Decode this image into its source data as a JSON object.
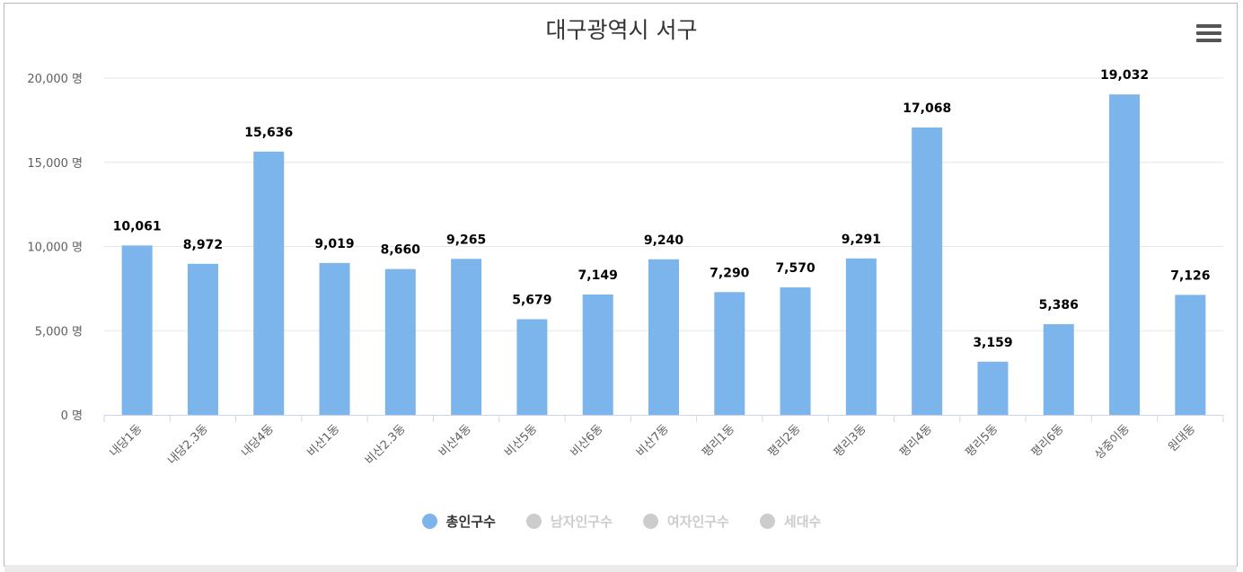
{
  "title": "대구광역시 서구",
  "menu_icon": "hamburger-menu-icon",
  "chart_data": {
    "type": "bar",
    "title": "대구광역시 서구",
    "categories": [
      "내당1동",
      "내당2.3동",
      "내당4동",
      "비산1동",
      "비산2.3동",
      "비산4동",
      "비산5동",
      "비산6동",
      "비산7동",
      "평리1동",
      "평리2동",
      "평리3동",
      "평리4동",
      "평리5동",
      "평리6동",
      "상중이동",
      "원대동"
    ],
    "series": [
      {
        "name": "총인구수",
        "values": [
          10061,
          8972,
          15636,
          9019,
          8660,
          9265,
          5679,
          7149,
          9240,
          7290,
          7570,
          9291,
          17068,
          3159,
          5386,
          19032,
          7126
        ],
        "color": "#7cb5ec",
        "visible": true
      }
    ],
    "data_labels": [
      "10,061",
      "8,972",
      "15,636",
      "9,019",
      "8,660",
      "9,265",
      "5,679",
      "7,149",
      "9,240",
      "7,290",
      "7,570",
      "9,291",
      "17,068",
      "3,159",
      "5,386",
      "19,032",
      "7,126"
    ],
    "ylim": [
      0,
      20000
    ],
    "y_ticks": [
      0,
      5000,
      10000,
      15000,
      20000
    ],
    "y_tick_labels": [
      "0 명",
      "5,000 명",
      "10,000 명",
      "15,000 명",
      "20,000 명"
    ],
    "grid": true,
    "legend_position": "bottom-center"
  },
  "legend": [
    {
      "label": "총인구수",
      "active": true,
      "color": "#7cb5ec"
    },
    {
      "label": "남자인구수",
      "active": false,
      "color": "#cccccc"
    },
    {
      "label": "여자인구수",
      "active": false,
      "color": "#cccccc"
    },
    {
      "label": "세대수",
      "active": false,
      "color": "#cccccc"
    }
  ]
}
